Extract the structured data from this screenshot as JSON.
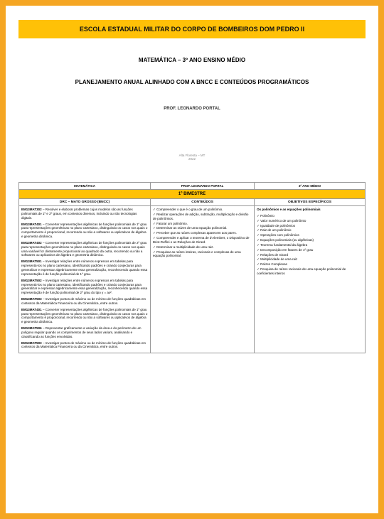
{
  "banner": "ESCOLA ESTADUAL MILITAR DO CORPO DE BOMBEIROS DOM PEDRO II",
  "subject_line": "MATEMÁTICA – 3º ANO ENSINO MÉDIO",
  "plan_title": "PLANEJAMENTO ANUAL ALINHADO COM A BNCC E CONTEÚDOS PROGRAMÁTICOS",
  "prof": "PROF. LEONARDO PORTAL",
  "footer1": "Alta Floresta – MT",
  "footer2": "2022",
  "colors": {
    "accent": "#ffc107",
    "page_bg": "#f5a623"
  },
  "table": {
    "top_headers": [
      "MATEMÁTICA",
      "PROF. LEONARDO PORTAL",
      "3º ANO MÉDIO"
    ],
    "bimester": "1º BIMESTRE",
    "sub_headers": [
      "DRC – MATO GROSSO (BNCC)",
      "CONTEÚDOS",
      "OBJETIVOS ESPECÍFICOS"
    ],
    "col1": [
      {
        "code": "EM13MAT302",
        "text": "– Resolver e elaborar problemas cujos modelos são as funções polinomiais de 1º e 2º graus, em contextos diversos, incluindo ou não tecnologias digitais."
      },
      {
        "code": "EM13MAT401",
        "text": "– Converter representações algébricas de funções polinomiais de 1º grau para representações geométricas no plano cartesiano, distinguindo os casos nos quais o comportamento é proporcional, recorrendo ou não a softwares ou aplicativos de álgebra e geometria dinâmica."
      },
      {
        "code": "EM13MAT402",
        "text": "– Converter representações algébricas de funções polinomiais de 2º grau para representações geométricas no plano cartesiano, distinguindo os casos nos quais uma variável for diretamente proporcional ao quadrado da outra, recorrendo ou não a softwares ou aplicativos de álgebra e geometria dinâmica."
      },
      {
        "code": "EM13MAT501",
        "text": "– Investigar relações entre números expressos em tabelas para representá-los no plano cartesiano, identificando padrões e criando conjecturas para generalizar e expressar algebricamente essa generalização, reconhecendo quando essa representação é de função polinomial de 1º grau."
      },
      {
        "code": "EM13MAT502",
        "text": "– Investigar relações entre números expressos em tabelas para representá-los no plano cartesiano, identificando padrões e criando conjecturas para generalizar e expressar algebricamente essa generalização, reconhecendo quando essa representação é de função polinomial de 2º grau do tipo y = ax²."
      },
      {
        "code": "EM13MAT503",
        "text": "– Investigar pontos de máximo ou de mínimo de funções quadráticas em contextos da Matemática Financeira ou da Cinemática, entre outros."
      },
      {
        "code": "EM13MAT401",
        "text": "– Converter representações algébricas de funções polinomiais de 1º grau para representações geométricas no plano cartesiano, distinguindo os casos nos quais o comportamento é proporcional, recorrendo ou não a softwares ou aplicativos de álgebra e geometria dinâmica."
      },
      {
        "code": "EM13MAT506",
        "text": "– Representar graficamente a variação da área e do perímetro de um polígono regular quando os comprimentos de seus lados variam, analisando e classificando as funções envolvidas."
      },
      {
        "code": "EM13MAT503",
        "text": "– Investigar pontos de máximo ou de mínimo de funções quadráticas em contextos da Matemática Financeira ou da Cinemática, entre outros."
      }
    ],
    "col2": [
      "Compreender o que é o grau de um polinômio.",
      "Realizar operações de adição, subtração, multiplicação e divisão de polinômios.",
      "Fatorar um polinômio.",
      "Determinar as raízes de uma equação polinomial.",
      "Perceber que as raízes complexas aparecem aos pares.",
      "Compreender e aplicar o teorema de d'Alembert, o Dispositivo de Briot-Ruffini e as Relações de Girard.",
      "Determinar a multiplicidade de uma raiz.",
      "Pesquisar as raízes inteiras, racionais e complexas de uma equação polinomial."
    ],
    "col3_title": "Os polinômios e as equações polinomiais",
    "col3": [
      "Polinômio",
      "Valor numérico de um polinômio",
      "Igualdade de polinômios",
      "Raiz de um polinômio",
      "Operações com polinômios",
      "Equações polinomiais (ou algébricas)",
      "Teorema fundamental da álgebra",
      "Decomposição em fatores de 1º grau",
      "Relações de Girard",
      "Multiplicidade de uma raiz",
      "Raízes Complexas",
      "Pesquisa de raízes racionais de uma equação polinomial de coeficientes inteiros"
    ]
  }
}
